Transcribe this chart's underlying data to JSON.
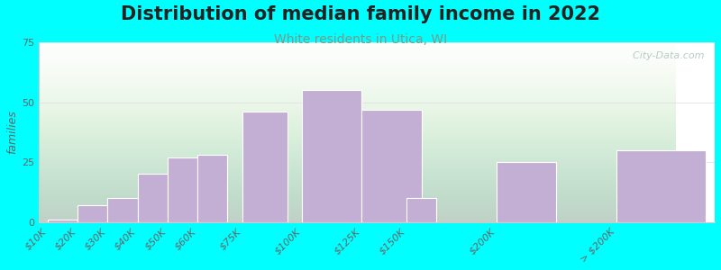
{
  "title": "Distribution of median family income in 2022",
  "subtitle": "White residents in Utica, WI",
  "ylabel": "families",
  "background_color": "#00FFFF",
  "bar_color": "#c4afd4",
  "bar_edge_color": "#ffffff",
  "categories": [
    "$10K",
    "$20K",
    "$30K",
    "$40K",
    "$50K",
    "$60K",
    "$75K",
    "$100K",
    "$125K",
    "$150K",
    "$200K",
    "> $200K"
  ],
  "values": [
    1,
    7,
    10,
    20,
    27,
    28,
    46,
    55,
    47,
    10,
    25,
    30
  ],
  "ylim": [
    0,
    75
  ],
  "yticks": [
    0,
    25,
    50,
    75
  ],
  "title_fontsize": 15,
  "subtitle_fontsize": 10,
  "ylabel_fontsize": 9,
  "tick_fontsize": 8,
  "watermark_text": "  City-Data.com",
  "subtitle_color": "#7a9a8a",
  "title_color": "#222222"
}
